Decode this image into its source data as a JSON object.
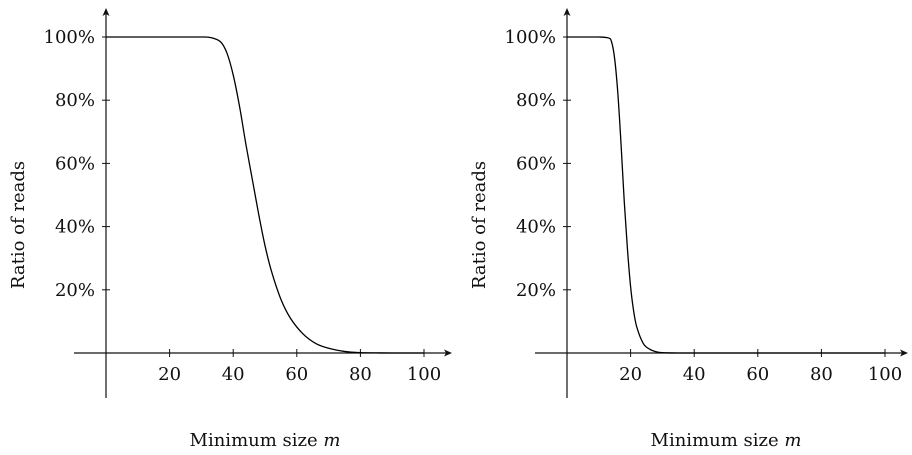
{
  "chart_data": [
    {
      "type": "line",
      "xlabel_text": "Minimum size ",
      "xlabel_var": "m",
      "ylabel": "Ratio of reads",
      "xlim": [
        0,
        100
      ],
      "ylim": [
        0,
        100
      ],
      "xticks": [
        20,
        40,
        60,
        80,
        100
      ],
      "yticks": [
        20,
        40,
        60,
        80,
        100
      ],
      "ytick_suffix": "%",
      "grid": false,
      "series": [
        {
          "x": [
            0,
            10,
            20,
            30,
            33,
            36,
            38,
            40,
            42,
            44,
            46,
            48,
            50,
            52,
            55,
            58,
            62,
            66,
            70,
            75,
            80,
            85,
            90,
            95,
            100
          ],
          "y": [
            100,
            100,
            100,
            100,
            99.8,
            98.5,
            95,
            88,
            78,
            66,
            55,
            44,
            34,
            26,
            17,
            11,
            6,
            3,
            1.5,
            0.5,
            0.1,
            0.03,
            0,
            0,
            0
          ]
        }
      ]
    },
    {
      "type": "line",
      "xlabel_text": "Minimum size ",
      "xlabel_var": "m",
      "ylabel": "Ratio of reads",
      "xlim": [
        0,
        100
      ],
      "ylim": [
        0,
        100
      ],
      "xticks": [
        20,
        40,
        60,
        80,
        100
      ],
      "yticks": [
        20,
        40,
        60,
        80,
        100
      ],
      "ytick_suffix": "%",
      "grid": false,
      "series": [
        {
          "x": [
            0,
            5,
            10,
            13,
            14,
            15,
            16,
            17,
            18,
            19,
            20,
            21,
            22,
            24,
            26,
            28,
            30,
            35,
            40,
            50,
            60,
            70,
            80,
            90,
            100
          ],
          "y": [
            100,
            100,
            100,
            99.7,
            98.5,
            93,
            82,
            66,
            48,
            33,
            21,
            13,
            8,
            3,
            1.2,
            0.4,
            0.1,
            0,
            0,
            0,
            0,
            0,
            0,
            0,
            0
          ]
        }
      ]
    }
  ]
}
